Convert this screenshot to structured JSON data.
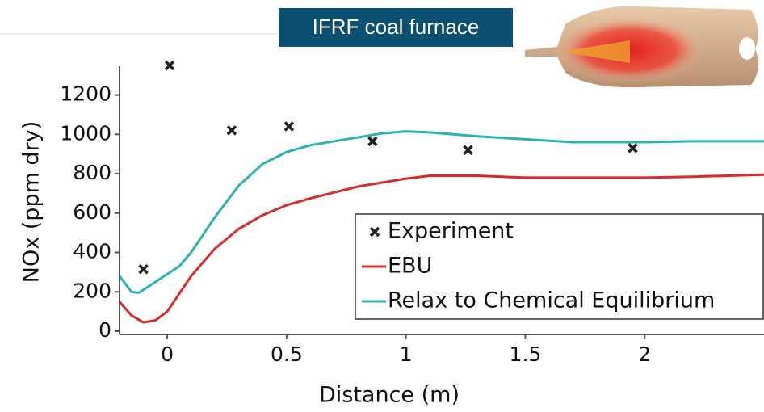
{
  "chart_data": {
    "type": "line",
    "title": "IFRF coal furnace",
    "xlabel": "Distance (m)",
    "ylabel": "NOx (ppm dry)",
    "xlim": [
      -0.2,
      2.5
    ],
    "ylim": [
      0,
      1350
    ],
    "xticks": [
      0,
      0.5,
      1,
      1.5,
      2
    ],
    "yticks": [
      0,
      200,
      400,
      600,
      800,
      1000,
      1200
    ],
    "legend": "lower right",
    "series": [
      {
        "name": "Experiment",
        "style": "scatter",
        "color": "#222222",
        "x": [
          -0.1,
          0.01,
          0.27,
          0.51,
          0.86,
          1.26,
          1.95
        ],
        "values": [
          315,
          1350,
          1020,
          1040,
          965,
          920,
          930
        ]
      },
      {
        "name": "EBU",
        "style": "line",
        "color": "#d62c2c",
        "x": [
          -0.2,
          -0.15,
          -0.1,
          -0.05,
          0,
          0.05,
          0.1,
          0.2,
          0.3,
          0.4,
          0.5,
          0.6,
          0.7,
          0.8,
          0.9,
          1.0,
          1.1,
          1.3,
          1.5,
          1.7,
          2.0,
          2.2,
          2.5
        ],
        "values": [
          150,
          80,
          45,
          55,
          100,
          190,
          280,
          420,
          520,
          590,
          640,
          675,
          705,
          735,
          755,
          775,
          790,
          790,
          780,
          780,
          780,
          785,
          795
        ]
      },
      {
        "name": "Relax to Chemical Equilibrium",
        "style": "line",
        "color": "#2ab3b3",
        "x": [
          -0.2,
          -0.15,
          -0.12,
          -0.05,
          0,
          0.05,
          0.1,
          0.2,
          0.3,
          0.4,
          0.5,
          0.6,
          0.7,
          0.8,
          0.9,
          1.0,
          1.1,
          1.3,
          1.5,
          1.7,
          2.0,
          2.2,
          2.5
        ],
        "values": [
          280,
          200,
          195,
          250,
          290,
          330,
          400,
          580,
          740,
          850,
          910,
          945,
          965,
          985,
          1005,
          1015,
          1010,
          990,
          975,
          960,
          960,
          965,
          965
        ]
      }
    ]
  }
}
